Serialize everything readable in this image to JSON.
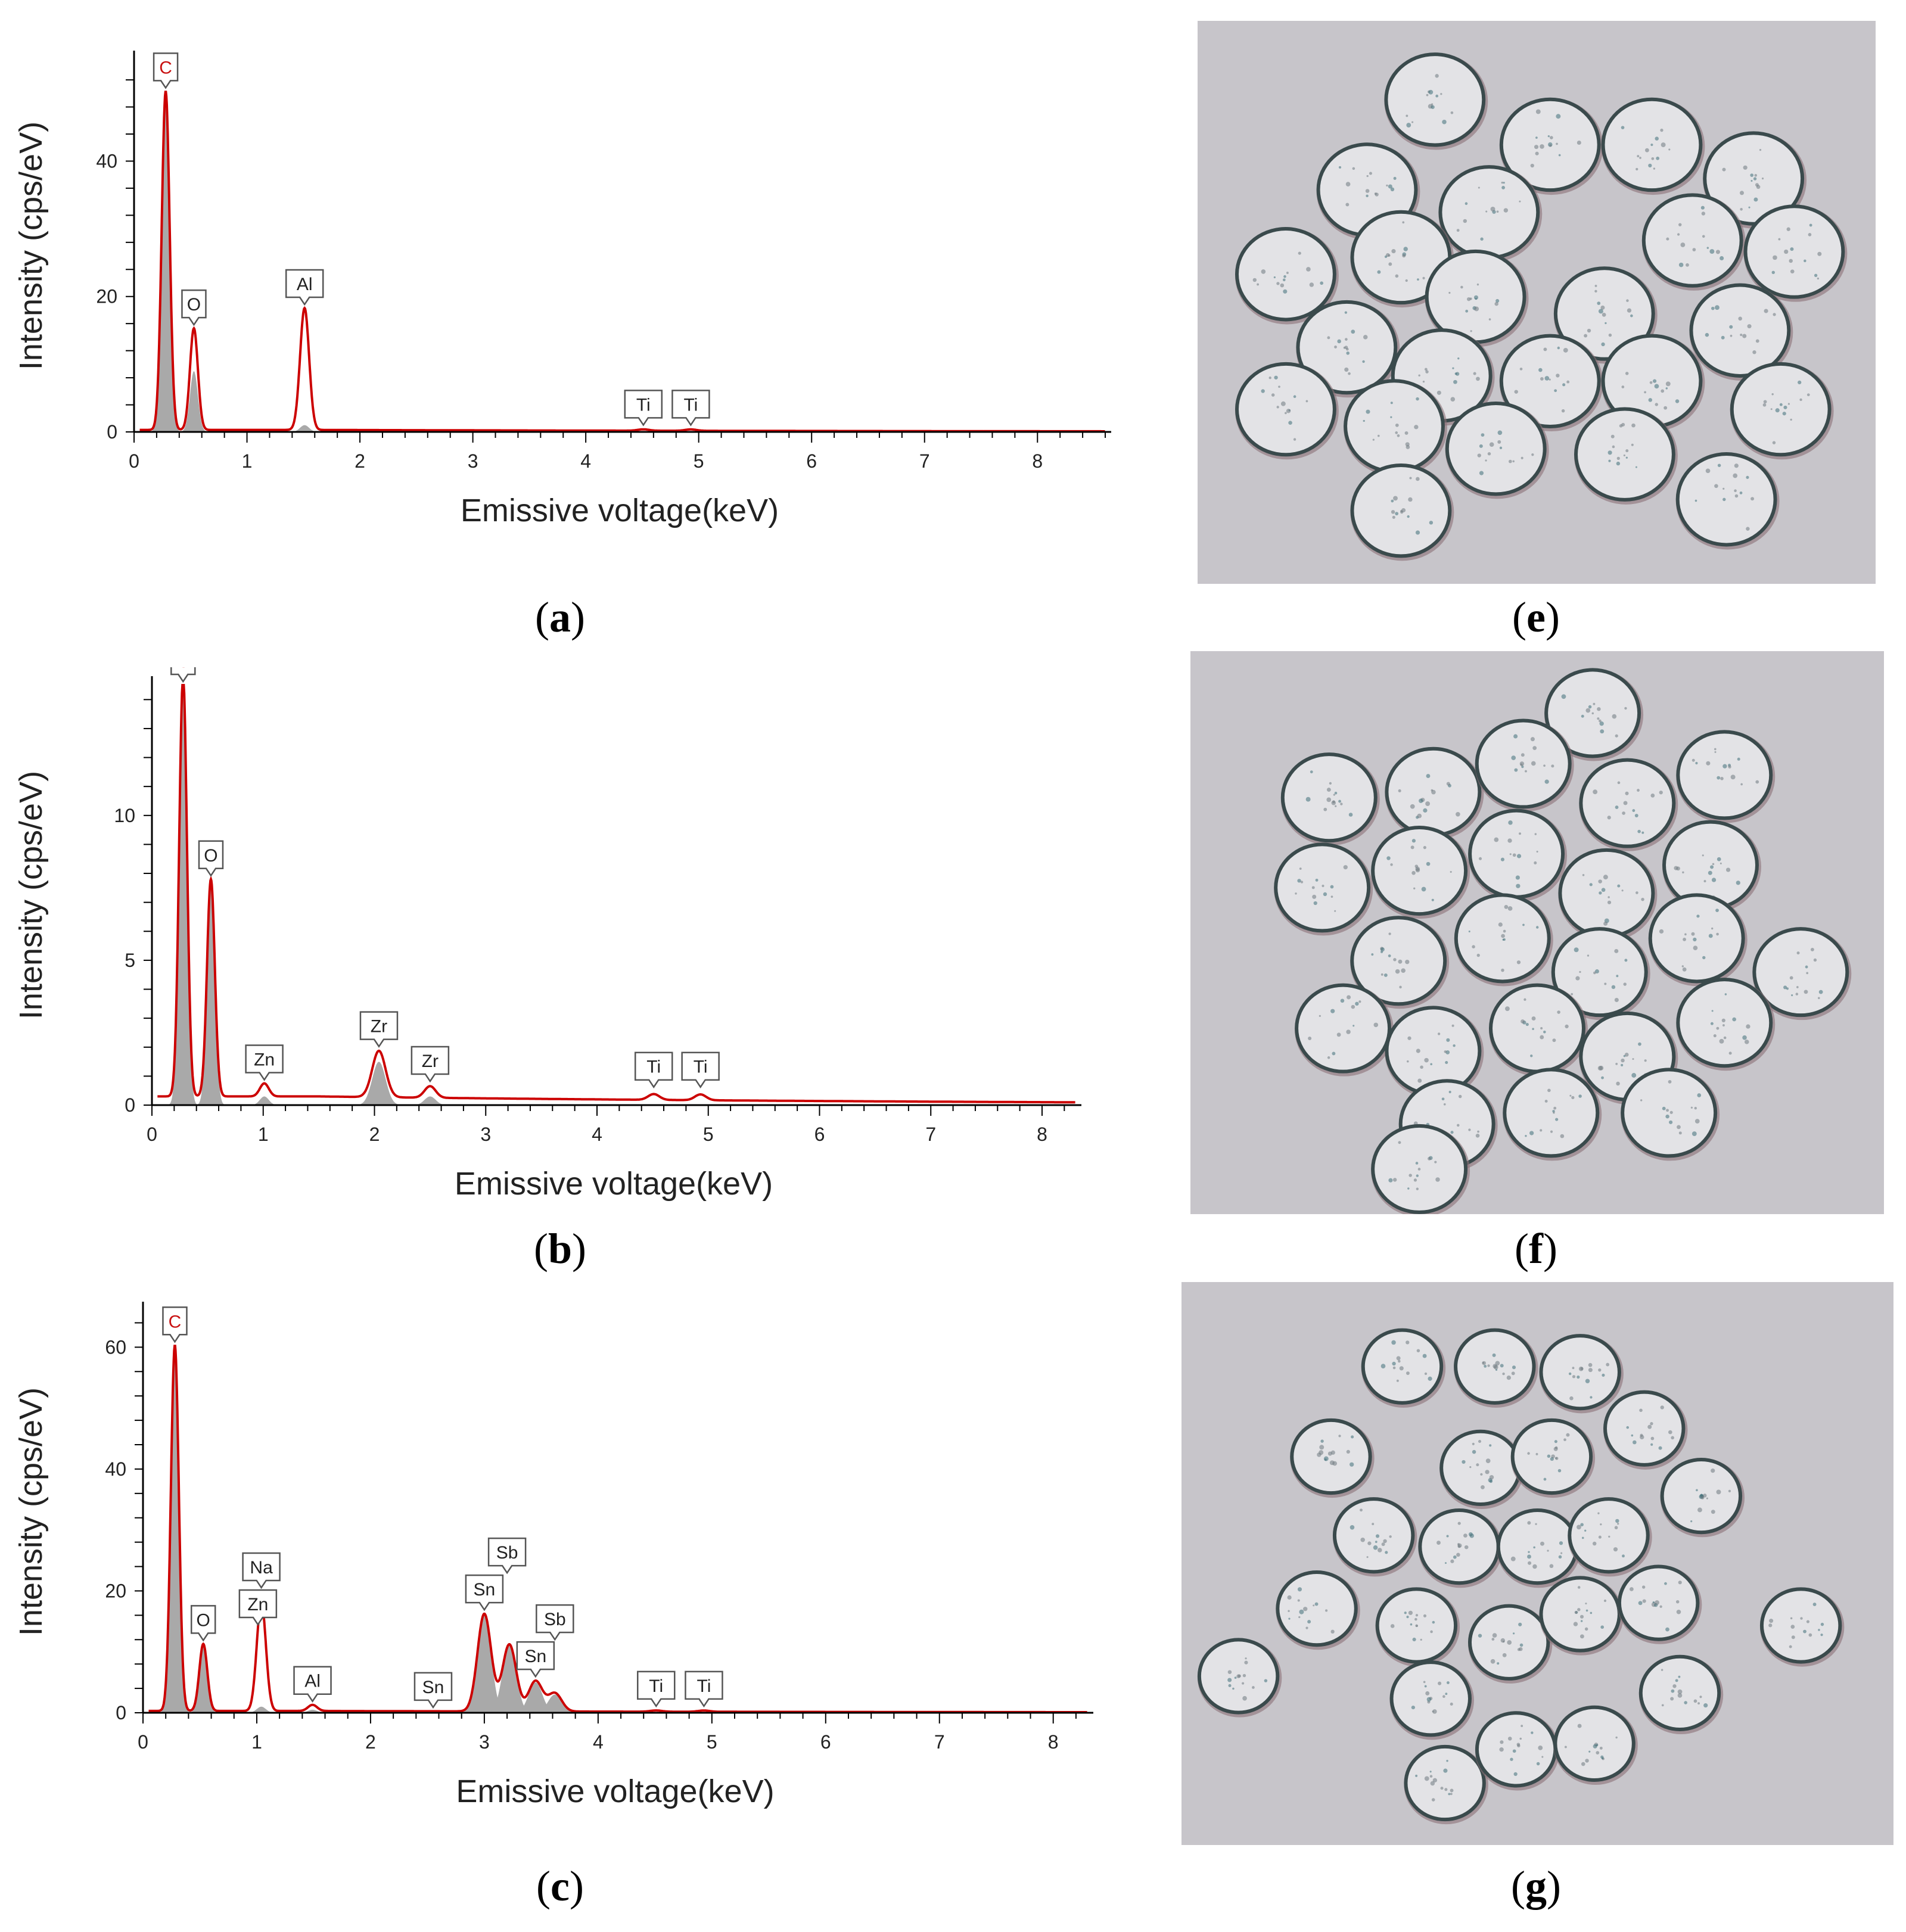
{
  "panels": [
    {
      "id": "a",
      "label_open": "(",
      "label_letter": "a",
      "label_close": ")"
    },
    {
      "id": "b",
      "label_open": "(",
      "label_letter": "b",
      "label_close": ")"
    },
    {
      "id": "c",
      "label_open": "(",
      "label_letter": "c",
      "label_close": ")"
    },
    {
      "id": "e",
      "label_open": "(",
      "label_letter": "e",
      "label_close": ")"
    },
    {
      "id": "f",
      "label_open": "(",
      "label_letter": "f",
      "label_close": ")"
    },
    {
      "id": "g",
      "label_open": "(",
      "label_letter": "g",
      "label_close": ")"
    }
  ],
  "colors": {
    "spectrum_line": "#cc0000",
    "peak_fill": "#a9a9a9",
    "micrograph_bg": "#c7c5ca",
    "cell_fill": "#e3e3e6",
    "cell_edge": "#3a4a4c"
  },
  "chart_data": [
    {
      "type": "line",
      "panel": "a",
      "xlabel": "Emissive voltage(keV)",
      "ylabel": "Intensity (cps/eV)",
      "xlim": [
        0,
        8.6
      ],
      "ylim": [
        0,
        55
      ],
      "xticks": [
        0,
        1,
        2,
        3,
        4,
        5,
        6,
        7,
        8
      ],
      "yticks": [
        0,
        20,
        40
      ],
      "baseline": 0.3,
      "peaks": [
        {
          "element": "C",
          "x": 0.28,
          "y": 50,
          "width": 0.035,
          "fill": 50
        },
        {
          "element": "O",
          "x": 0.53,
          "y": 15,
          "width": 0.035,
          "fill": 9
        },
        {
          "element": "Al",
          "x": 1.51,
          "y": 18,
          "width": 0.04,
          "fill": 1
        },
        {
          "element": "Ti",
          "x": 4.51,
          "y": 0.2,
          "width": 0.05,
          "fill": 0
        },
        {
          "element": "Ti",
          "x": 4.93,
          "y": 0.2,
          "width": 0.05,
          "fill": 0
        }
      ],
      "markers": [
        {
          "text": "C",
          "x": 0.28
        },
        {
          "text": "O",
          "x": 0.53
        },
        {
          "text": "Al",
          "x": 1.51
        },
        {
          "text": "Ti",
          "x": 4.51
        },
        {
          "text": "Ti",
          "x": 4.93
        }
      ]
    },
    {
      "type": "line",
      "panel": "b",
      "xlabel": "Emissive voltage(keV)",
      "ylabel": "Intensity (cps/eV)",
      "xlim": [
        0,
        8.3
      ],
      "ylim": [
        0,
        14.5
      ],
      "xticks": [
        0,
        1,
        2,
        3,
        4,
        5,
        6,
        7,
        8
      ],
      "yticks": [
        0,
        5,
        10
      ],
      "baseline": 0.3,
      "peaks": [
        {
          "element": "C",
          "x": 0.28,
          "y": 14.5,
          "width": 0.035,
          "fill": 14.5
        },
        {
          "element": "O",
          "x": 0.53,
          "y": 7.5,
          "width": 0.035,
          "fill": 7.5
        },
        {
          "element": "Zn",
          "x": 1.01,
          "y": 0.45,
          "width": 0.04,
          "fill": 0.3
        },
        {
          "element": "Zr",
          "x": 2.04,
          "y": 1.6,
          "width": 0.06,
          "fill": 1.5
        },
        {
          "element": "Zr",
          "x": 2.5,
          "y": 0.4,
          "width": 0.05,
          "fill": 0.3
        },
        {
          "element": "Ti",
          "x": 4.51,
          "y": 0.2,
          "width": 0.05,
          "fill": 0
        },
        {
          "element": "Ti",
          "x": 4.93,
          "y": 0.2,
          "width": 0.05,
          "fill": 0
        }
      ],
      "markers": [
        {
          "text": "C",
          "x": 0.28
        },
        {
          "text": "O",
          "x": 0.53
        },
        {
          "text": "Zn",
          "x": 1.01
        },
        {
          "text": "Zr",
          "x": 2.04
        },
        {
          "text": "Zr",
          "x": 2.5
        },
        {
          "text": "Ti",
          "x": 4.51
        },
        {
          "text": "Ti",
          "x": 4.93
        }
      ]
    },
    {
      "type": "line",
      "panel": "c",
      "xlabel": "Emissive voltage(keV)",
      "ylabel": "Intensity (cps/eV)",
      "xlim": [
        0,
        8.3
      ],
      "ylim": [
        0,
        66
      ],
      "xticks": [
        0,
        1,
        2,
        3,
        4,
        5,
        6,
        7,
        8
      ],
      "yticks": [
        0,
        20,
        40,
        60
      ],
      "baseline": 0.3,
      "peaks": [
        {
          "element": "C",
          "x": 0.28,
          "y": 60,
          "width": 0.035,
          "fill": 60
        },
        {
          "element": "O",
          "x": 0.53,
          "y": 11,
          "width": 0.035,
          "fill": 11
        },
        {
          "element": "Na",
          "x": 1.04,
          "y": 18,
          "width": 0.04,
          "fill": 1
        },
        {
          "element": "Al",
          "x": 1.49,
          "y": 1,
          "width": 0.04,
          "fill": 0.5
        },
        {
          "element": "Sn",
          "x": 3.0,
          "y": 16,
          "width": 0.06,
          "fill": 16
        },
        {
          "element": "Sb",
          "x": 3.22,
          "y": 11,
          "width": 0.06,
          "fill": 11
        },
        {
          "element": "Sn",
          "x": 3.45,
          "y": 5,
          "width": 0.06,
          "fill": 5
        },
        {
          "element": "Sb",
          "x": 3.62,
          "y": 3,
          "width": 0.06,
          "fill": 3
        },
        {
          "element": "Ti",
          "x": 4.51,
          "y": 0.2,
          "width": 0.05,
          "fill": 0
        },
        {
          "element": "Ti",
          "x": 4.93,
          "y": 0.2,
          "width": 0.05,
          "fill": 0
        }
      ],
      "markers": [
        {
          "text": "C",
          "x": 0.28
        },
        {
          "text": "O",
          "x": 0.53
        },
        {
          "text": "Zn",
          "x": 1.01
        },
        {
          "text": "Na",
          "x": 1.04
        },
        {
          "text": "Al",
          "x": 1.49
        },
        {
          "text": "Sn",
          "x": 2.55
        },
        {
          "text": "Sn",
          "x": 3.0
        },
        {
          "text": "Sb",
          "x": 3.2
        },
        {
          "text": "Sn",
          "x": 3.45
        },
        {
          "text": "Sb",
          "x": 3.62
        },
        {
          "text": "Ti",
          "x": 4.51
        },
        {
          "text": "Ti",
          "x": 4.93
        }
      ]
    }
  ]
}
